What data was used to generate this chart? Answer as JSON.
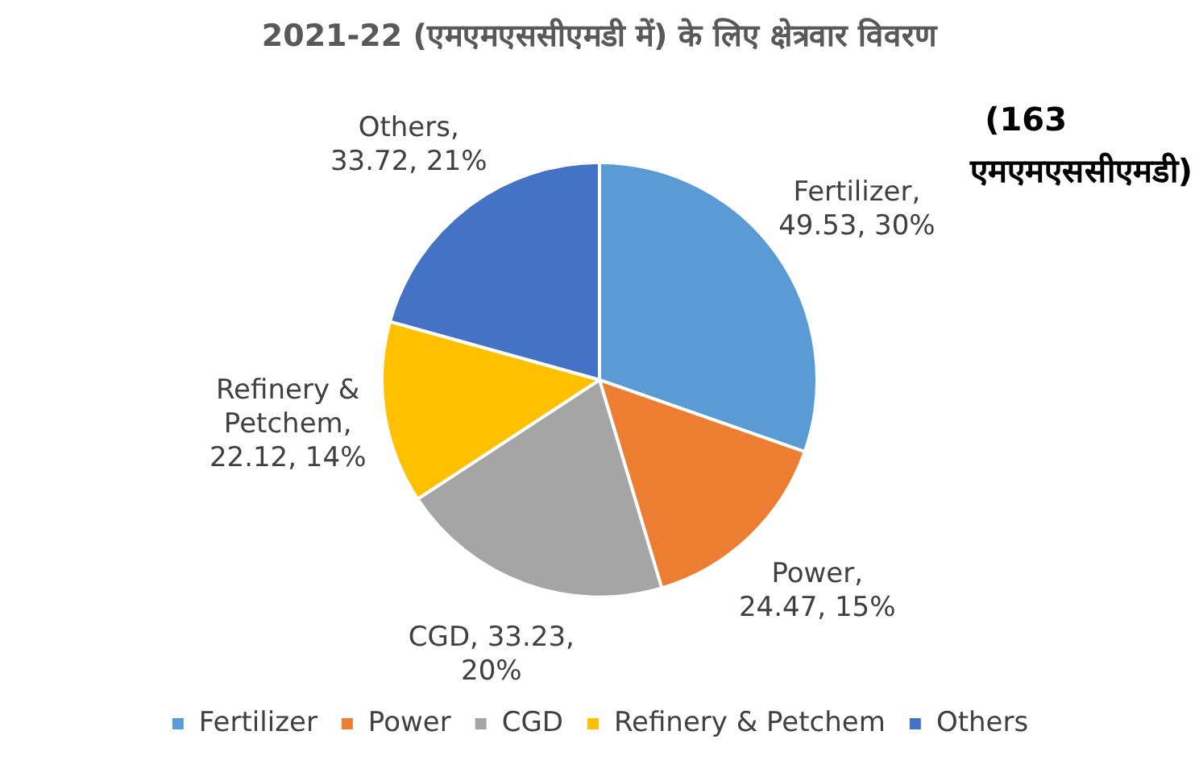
{
  "chart_data": {
    "type": "pie",
    "title": "2021-22 (एमएमएससीएमडी में) के लिए क्षेत्रवार विवरण",
    "categories": [
      "Fertilizer",
      "Power",
      "CGD",
      "Refinery & Petchem",
      "Others"
    ],
    "values": [
      49.53,
      24.47,
      33.23,
      22.12,
      33.72
    ],
    "value_labels": [
      "Fertilizer,\n49.53, 30%",
      "Power,\n24.47, 15%",
      "CGD, 33.23,\n20%",
      "Refinery &\nPetchem,\n22.12, 14%",
      "Others,\n33.72, 21%"
    ],
    "colors": [
      "#5b9bd5",
      "#ed7d31",
      "#a5a5a5",
      "#ffc000",
      "#4472c4"
    ],
    "annotations": [
      "(163 एमएमएससीएमडी)"
    ],
    "legend": "bottom"
  }
}
